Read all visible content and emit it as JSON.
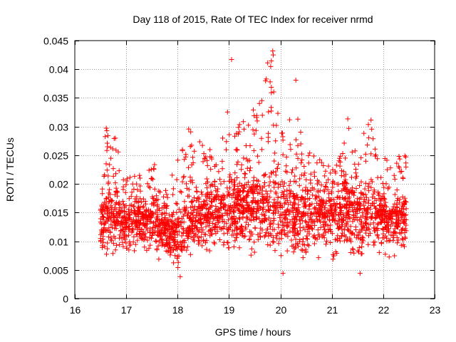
{
  "chart_data": {
    "type": "scatter",
    "title": "Day 118 of 2015, Rate Of TEC Index for receiver nrmd",
    "xlabel": "GPS time / hours",
    "ylabel": "ROTI / TECUs",
    "xlim": [
      16,
      23
    ],
    "ylim": [
      0,
      0.045
    ],
    "xticks": [
      "16",
      "17",
      "18",
      "19",
      "20",
      "21",
      "22",
      "23"
    ],
    "yticks": [
      "0",
      "0.005",
      "0.01",
      "0.015",
      "0.02",
      "0.025",
      "0.03",
      "0.035",
      "0.04",
      "0.045"
    ],
    "grid": true,
    "marker": "+",
    "color": "#ff0000",
    "data_x_range": [
      16.5,
      22.45
    ],
    "envelope": {
      "x": [
        16.5,
        16.6,
        16.8,
        17.0,
        17.3,
        17.5,
        17.7,
        18.0,
        18.1,
        18.4,
        18.8,
        19.0,
        19.3,
        19.5,
        19.8,
        19.9,
        20.0,
        20.3,
        20.5,
        20.8,
        21.0,
        21.3,
        21.5,
        21.75,
        22.0,
        22.2,
        22.45
      ],
      "y_upper": [
        0.02,
        0.03,
        0.028,
        0.021,
        0.022,
        0.026,
        0.018,
        0.024,
        0.031,
        0.028,
        0.025,
        0.034,
        0.032,
        0.034,
        0.043,
        0.038,
        0.03,
        0.033,
        0.026,
        0.024,
        0.023,
        0.032,
        0.026,
        0.032,
        0.025,
        0.024,
        0.026
      ],
      "y_mid": [
        0.011,
        0.014,
        0.013,
        0.012,
        0.012,
        0.013,
        0.011,
        0.011,
        0.012,
        0.013,
        0.014,
        0.015,
        0.015,
        0.015,
        0.016,
        0.016,
        0.015,
        0.014,
        0.014,
        0.014,
        0.014,
        0.015,
        0.014,
        0.015,
        0.013,
        0.013,
        0.013
      ],
      "y_lower": [
        0.007,
        0.006,
        0.007,
        0.006,
        0.007,
        0.007,
        0.006,
        0.004,
        0.005,
        0.007,
        0.007,
        0.006,
        0.007,
        0.006,
        0.005,
        0.006,
        0.005,
        0.005,
        0.006,
        0.006,
        0.006,
        0.006,
        0.005,
        0.006,
        0.006,
        0.006,
        0.006
      ]
    },
    "notable_points": [
      {
        "x": 19.85,
        "y": 0.0432
      },
      {
        "x": 19.86,
        "y": 0.0425
      },
      {
        "x": 19.05,
        "y": 0.0417
      },
      {
        "x": 20.3,
        "y": 0.0381
      },
      {
        "x": 19.8,
        "y": 0.0378
      },
      {
        "x": 18.05,
        "y": 0.0038
      },
      {
        "x": 20.05,
        "y": 0.0044
      },
      {
        "x": 21.55,
        "y": 0.0044
      }
    ]
  }
}
